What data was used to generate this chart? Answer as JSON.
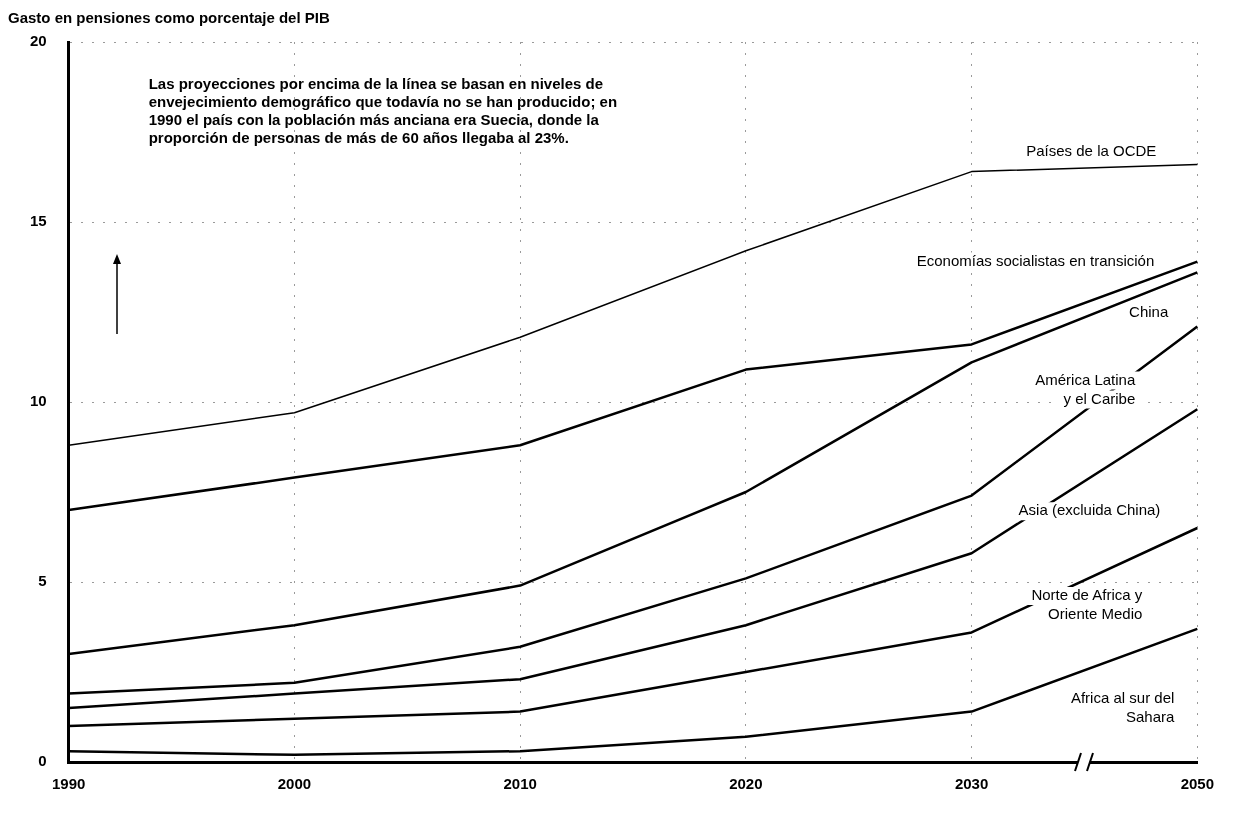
{
  "chart_data": {
    "type": "line",
    "title": "Gasto en pensiones como porcentaje del PIB",
    "categories": [
      "1990",
      "2000",
      "2010",
      "2020",
      "2030",
      "2050"
    ],
    "series": [
      {
        "name": "Países de la OCDE",
        "color": "#000000",
        "values": [
          8.8,
          9.7,
          11.8,
          14.2,
          16.4,
          16.6
        ]
      },
      {
        "name": "Economías socialistas en transición",
        "color": "#000000",
        "values": [
          7.0,
          7.9,
          8.8,
          10.9,
          11.6,
          13.9
        ]
      },
      {
        "name": "China",
        "color": "#000000",
        "values": [
          3.0,
          3.8,
          4.9,
          7.5,
          11.1,
          13.6
        ]
      },
      {
        "name": "América Latina y el Caribe",
        "color": "#000000",
        "values": [
          1.9,
          2.2,
          3.2,
          5.1,
          7.4,
          12.1
        ]
      },
      {
        "name": "Asia (excluida China)",
        "color": "#000000",
        "values": [
          1.5,
          1.9,
          2.3,
          3.8,
          5.8,
          9.8
        ]
      },
      {
        "name": "Norte de Africa y Oriente Medio",
        "color": "#000000",
        "values": [
          1.0,
          1.2,
          1.4,
          2.5,
          3.6,
          6.5
        ]
      },
      {
        "name": "Africa al sur del Sahara",
        "color": "#000000",
        "values": [
          0.3,
          0.2,
          0.3,
          0.7,
          1.4,
          3.7
        ]
      }
    ],
    "ylim": [
      0,
      20
    ],
    "yticks": [
      0,
      5,
      10,
      15,
      20
    ],
    "grid": true,
    "legend": false,
    "marker": "none",
    "line_style": "solid",
    "annotations": [
      "Las proyecciones por encima de la línea se basan en niveles de envejecimiento demográfico que todavía no se han producido; en 1990 el país con la población más anciana era Suecia, donde la proporción de personas de más de 60 años llegaba al 23%."
    ]
  }
}
